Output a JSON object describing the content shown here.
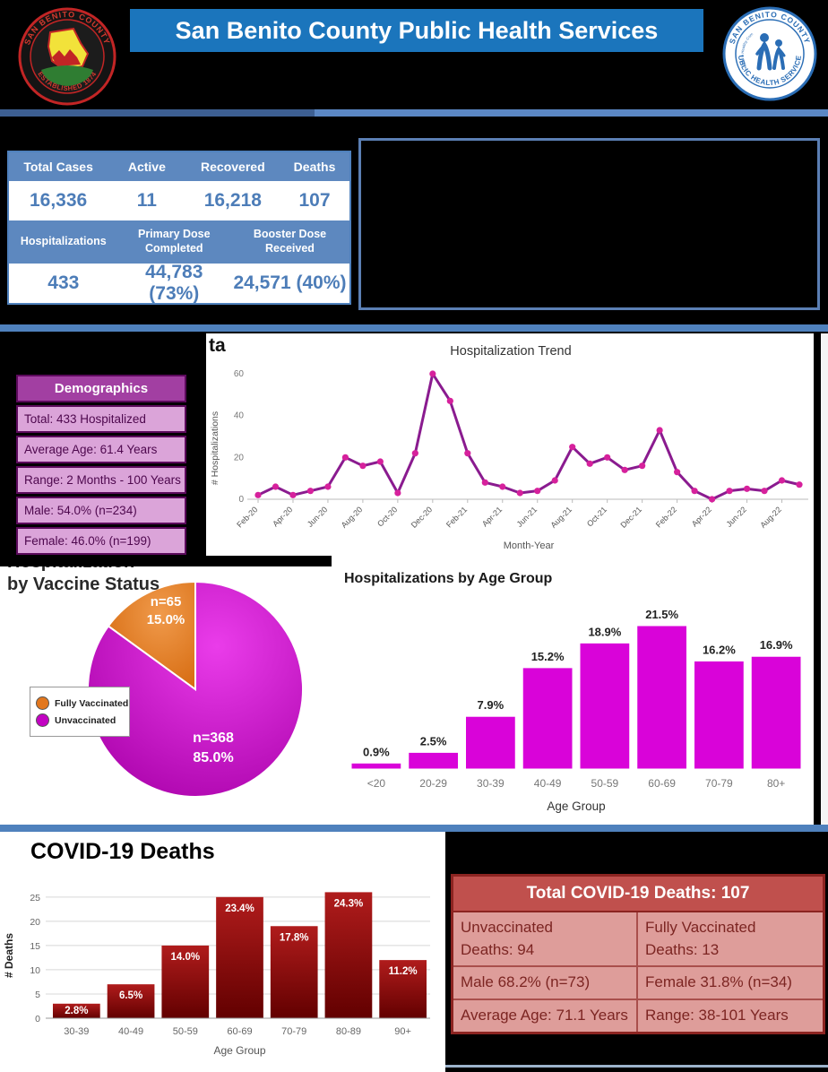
{
  "header": {
    "title": "San Benito County Public Health Services",
    "county_seal": {
      "top_text": "SAN BENITO COUNTY",
      "bottom_text": "ESTABLISHED 1874"
    },
    "health_seal": {
      "top_text": "SAN BENITO COUNTY",
      "bottom_text": "PUBLIC HEALTH SERVICES",
      "slogan": "Healthy People in Healthy Communities"
    }
  },
  "stats_table": {
    "row1_headers": [
      "Total Cases",
      "Active",
      "Recovered",
      "Deaths"
    ],
    "row1_values": [
      "16,336",
      "11",
      "16,218",
      "107"
    ],
    "row2_headers": [
      "Hospitalizations",
      "Primary Dose Completed",
      "Booster Dose Received"
    ],
    "row2_values": [
      "433",
      "44,783 (73%)",
      "24,571 (40%)"
    ]
  },
  "hospitalization_section": {
    "partial_heading": "ta",
    "demographics": {
      "title": "Demographics",
      "rows": [
        "Total: 433 Hospitalized",
        "Average Age: 61.4 Years",
        "Range: 2 Months - 100 Years",
        "Male: 54.0% (n=234)",
        "Female: 46.0% (n=199)"
      ]
    },
    "pie_title_line1": "Hospitalization",
    "pie_title_line2": "by Vaccine Status",
    "legend": [
      "Fully Vaccinated",
      "Unvaccinated"
    ]
  },
  "deaths_section": {
    "title": "COVID-19 Deaths",
    "table": {
      "header": "Total COVID-19 Deaths: 107",
      "rows": [
        [
          [
            "Unvaccinated",
            "Deaths: 94"
          ],
          [
            "Fully Vaccinated",
            "Deaths: 13"
          ]
        ],
        [
          [
            "Male 68.2% (n=73)"
          ],
          [
            "Female 31.8% (n=34)"
          ]
        ],
        [
          [
            "Average Age: 71.1 Years"
          ],
          [
            "Range: 38-101 Years"
          ]
        ]
      ]
    }
  },
  "chart_data": [
    {
      "id": "hospitalization_trend",
      "type": "line",
      "title": "Hospitalization Trend",
      "xlabel": "Month-Year",
      "ylabel": "# Hospitalizations",
      "x": [
        "Feb-20",
        "Mar-20",
        "Apr-20",
        "May-20",
        "Jun-20",
        "Jul-20",
        "Aug-20",
        "Sep-20",
        "Oct-20",
        "Nov-20",
        "Dec-20",
        "Jan-21",
        "Feb-21",
        "Mar-21",
        "Apr-21",
        "May-21",
        "Jun-21",
        "Jul-21",
        "Aug-21",
        "Sep-21",
        "Oct-21",
        "Nov-21",
        "Dec-21",
        "Jan-22",
        "Feb-22",
        "Mar-22",
        "Apr-22",
        "May-22",
        "Jun-22",
        "Jul-22",
        "Aug-22",
        "Sep-22"
      ],
      "values": [
        2,
        6,
        2,
        4,
        6,
        20,
        16,
        18,
        3,
        22,
        60,
        47,
        22,
        8,
        6,
        3,
        4,
        9,
        25,
        17,
        20,
        14,
        16,
        33,
        13,
        4,
        0,
        4,
        5,
        4,
        9,
        7
      ],
      "yticks": [
        0,
        20,
        40,
        60
      ],
      "ylim": [
        0,
        62
      ],
      "tick_every": 2,
      "line_color": "#8a1b8f",
      "marker_color": "#d6219c"
    },
    {
      "id": "vaccine_status_pie",
      "type": "pie",
      "title": "Hospitalization by Vaccine Status",
      "slices": [
        {
          "label": "Fully Vaccinated",
          "n": 65,
          "pct": 15.0,
          "color_light": "#f09a4b",
          "color_dark": "#d4670b"
        },
        {
          "label": "Unvaccinated",
          "n": 368,
          "pct": 85.0,
          "color_light": "#ea3cea",
          "color_dark": "#a800a8"
        }
      ],
      "legend_position": "left"
    },
    {
      "id": "hospitalizations_by_age",
      "type": "bar",
      "title": "Hospitalizations by Age Group",
      "xlabel": "Age Group",
      "categories": [
        "<20",
        "20-29",
        "30-39",
        "40-49",
        "50-59",
        "60-69",
        "70-79",
        "80+"
      ],
      "values": [
        0.9,
        2.5,
        7.9,
        15.2,
        18.9,
        21.5,
        16.2,
        16.9
      ],
      "labels": [
        "0.9%",
        "2.5%",
        "7.9%",
        "15.2%",
        "18.9%",
        "21.5%",
        "16.2%",
        "16.9%"
      ],
      "bar_color": "#d903d9",
      "label_position": "above",
      "grid": false
    },
    {
      "id": "deaths_by_age",
      "type": "bar",
      "title": "COVID-19 Deaths",
      "xlabel": "Age Group",
      "ylabel": "# Deaths",
      "categories": [
        "30-39",
        "40-49",
        "50-59",
        "60-69",
        "70-79",
        "80-89",
        "90+"
      ],
      "values": [
        3,
        7,
        15,
        25,
        19,
        26,
        12
      ],
      "labels": [
        "2.8%",
        "6.5%",
        "14.0%",
        "23.4%",
        "17.8%",
        "24.3%",
        "11.2%"
      ],
      "yticks": [
        0,
        5,
        10,
        15,
        20,
        25
      ],
      "ylim": [
        0,
        27
      ],
      "bar_color_top": "#b01c1c",
      "bar_color_bottom": "#620000",
      "label_position": "inside",
      "grid": true
    }
  ],
  "colors": {
    "banner_blue": "#1b75bc",
    "divider_blue": "#4f81bd",
    "stats_header_blue": "#5d88bf",
    "stats_value_blue": "#4d7db8",
    "demographics_purple": "#a23fa2",
    "demographics_row_pink": "#dba4d9",
    "pie_orange": "#e2771e",
    "pie_magenta": "#c203c2",
    "age_bar_magenta": "#d903d9",
    "deaths_red": "#9c1414",
    "deaths_table_header": "#c0504d",
    "deaths_table_row": "#de9d9a"
  }
}
